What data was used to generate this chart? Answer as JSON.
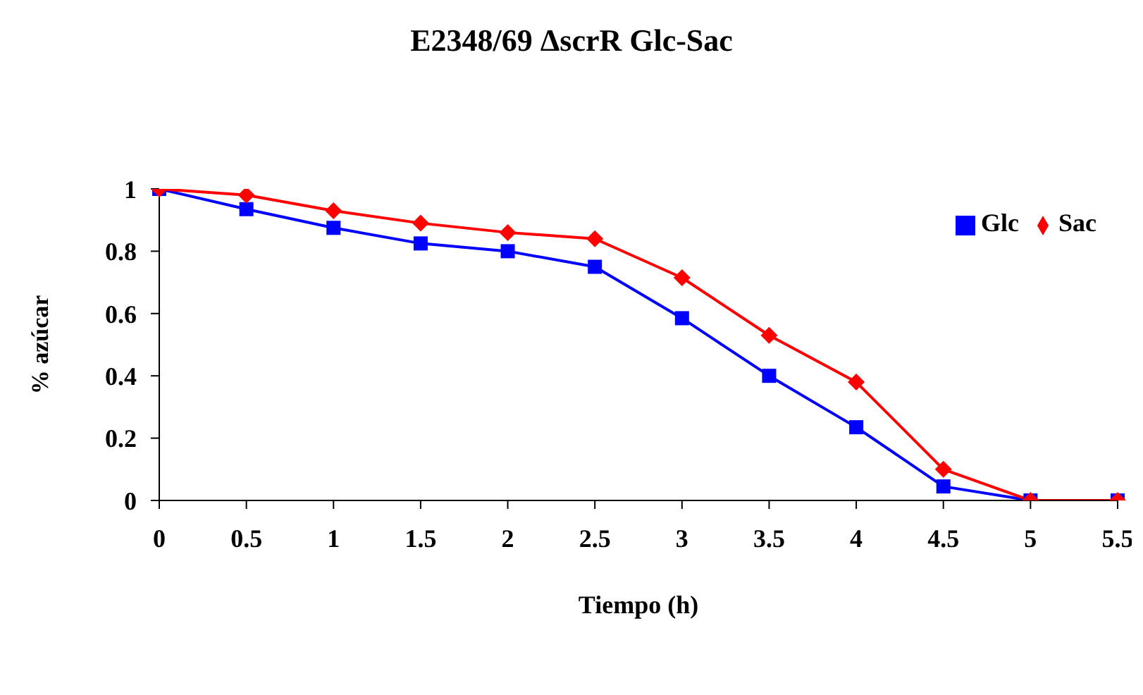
{
  "chart_data": {
    "type": "line",
    "title": "E2348/69  ΔscrR  Glc-Sac",
    "xlabel": "Tiempo (h)",
    "ylabel": "% azúcar",
    "categories": [
      "0",
      "0.5",
      "1",
      "1.5",
      "2",
      "2.5",
      "3",
      "3.5",
      "4",
      "4.5",
      "5",
      "5.5"
    ],
    "series": [
      {
        "name": "Glc",
        "color": "#0000ff",
        "marker": "square",
        "values": [
          1,
          0.935,
          0.875,
          0.825,
          0.8,
          0.75,
          0.585,
          0.4,
          0.235,
          0.045,
          0,
          0
        ]
      },
      {
        "name": "Sac",
        "color": "#ff0000",
        "marker": "diamond",
        "values": [
          1,
          0.98,
          0.93,
          0.89,
          0.86,
          0.84,
          0.715,
          0.53,
          0.38,
          0.1,
          0,
          0
        ]
      }
    ],
    "ylim": [
      0,
      1
    ],
    "yticks": [
      0,
      0.2,
      0.4,
      0.6,
      0.8,
      1
    ],
    "grid": false,
    "legend": "top right",
    "line_style": "solid"
  }
}
